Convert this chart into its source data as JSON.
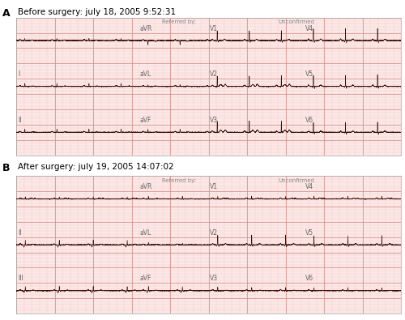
{
  "panel_a_title": "Before surgery: july 18, 2005 9:52:31",
  "panel_b_title": "After surgery: july 19, 2005 14:07:02",
  "panel_a_label": "A",
  "panel_b_label": "B",
  "ecg_bg_color": "#fce8e6",
  "grid_major_color": "#d4908a",
  "grid_minor_color": "#eec8c5",
  "ecg_line_color": "#3a1008",
  "outer_bg": "#ffffff",
  "referred_by": "Referred by:",
  "unconfirmed": "Unconfirmed",
  "title_fontsize": 7.5,
  "label_fontsize": 9,
  "lead_fontsize": 5.5
}
